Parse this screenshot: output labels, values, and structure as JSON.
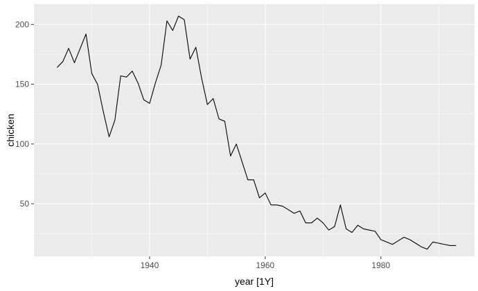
{
  "chart_data": {
    "type": "line",
    "xlabel": "year [1Y]",
    "ylabel": "chicken",
    "xlim": [
      1920,
      1996.2
    ],
    "ylim": [
      6,
      217
    ],
    "x_ticks": [
      1940,
      1960,
      1980
    ],
    "x_tick_labels": [
      "1940",
      "1960",
      "1980"
    ],
    "y_ticks": [
      50,
      100,
      150,
      200
    ],
    "y_tick_labels": [
      "50",
      "100",
      "150",
      "200"
    ],
    "grid": true,
    "legend": "none",
    "colors": {
      "panel": "#ebebeb",
      "grid": "#ffffff",
      "line": "#000000"
    },
    "x": [
      1924,
      1925,
      1926,
      1927,
      1928,
      1929,
      1930,
      1931,
      1932,
      1933,
      1934,
      1935,
      1936,
      1937,
      1938,
      1939,
      1940,
      1941,
      1942,
      1943,
      1944,
      1945,
      1946,
      1947,
      1948,
      1949,
      1950,
      1951,
      1952,
      1953,
      1954,
      1955,
      1956,
      1957,
      1958,
      1959,
      1960,
      1961,
      1962,
      1963,
      1964,
      1965,
      1966,
      1967,
      1968,
      1969,
      1970,
      1971,
      1972,
      1973,
      1974,
      1975,
      1976,
      1977,
      1978,
      1979,
      1980,
      1981,
      1982,
      1983,
      1984,
      1985,
      1986,
      1987,
      1988,
      1989,
      1990,
      1991,
      1992,
      1993
    ],
    "values": [
      164,
      169,
      180,
      168,
      180,
      192,
      159,
      150,
      127,
      106,
      120,
      157,
      156,
      161,
      151,
      137,
      134,
      151,
      166,
      203,
      195,
      207,
      204,
      171,
      181,
      155,
      133,
      138,
      121,
      119,
      90,
      100,
      85,
      70,
      70,
      55,
      59,
      49,
      49,
      48,
      45,
      42,
      44,
      34,
      34,
      38,
      34,
      28,
      31,
      49,
      29,
      26,
      32,
      29,
      28,
      27,
      20,
      18,
      16,
      19,
      22,
      20,
      17,
      14,
      12,
      18,
      17,
      16,
      15,
      15
    ]
  }
}
